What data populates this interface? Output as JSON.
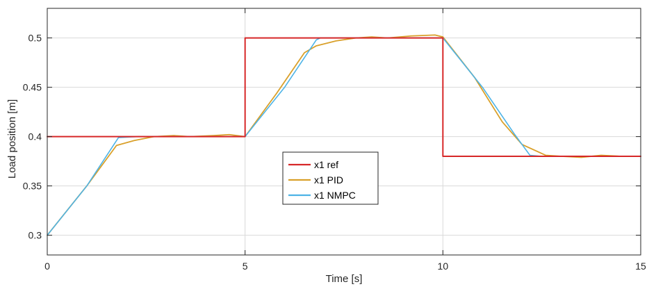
{
  "chart_data": {
    "type": "line",
    "title": "",
    "xlabel": "Time [s]",
    "ylabel": "Load position [m]",
    "xlim": [
      0,
      15
    ],
    "ylim": [
      0.28,
      0.53
    ],
    "xticks": [
      0,
      5,
      10,
      15
    ],
    "yticks": [
      0.3,
      0.35,
      0.4,
      0.45,
      0.5
    ],
    "xtick_labels": [
      "0",
      "5",
      "10",
      "15"
    ],
    "ytick_labels": [
      "0.3",
      "0.35",
      "0.4",
      "0.45",
      "0.5"
    ],
    "grid": true,
    "legend_position": "center",
    "series": [
      {
        "name": "x1 ref",
        "color": "#d62728",
        "x": [
          0,
          5,
          5,
          10,
          10,
          15
        ],
        "y": [
          0.4,
          0.4,
          0.5,
          0.5,
          0.38,
          0.38
        ]
      },
      {
        "name": "x1 PID",
        "color": "#d9a02a",
        "x": [
          0,
          1,
          1.75,
          2.2,
          2.7,
          3.2,
          3.6,
          4.2,
          4.6,
          5,
          5.8,
          6.5,
          6.8,
          7.3,
          7.8,
          8.2,
          8.6,
          9.2,
          9.8,
          10,
          10.8,
          11.5,
          12,
          12.6,
          13,
          13.5,
          14,
          14.5,
          15
        ],
        "y": [
          0.3,
          0.35,
          0.391,
          0.396,
          0.4,
          0.401,
          0.4,
          0.401,
          0.402,
          0.4,
          0.444,
          0.485,
          0.492,
          0.497,
          0.5,
          0.501,
          0.5,
          0.502,
          0.503,
          0.501,
          0.46,
          0.415,
          0.392,
          0.381,
          0.38,
          0.379,
          0.381,
          0.38,
          0.38
        ]
      },
      {
        "name": "x1 NMPC",
        "color": "#4db3e6",
        "x": [
          0,
          1,
          1.8,
          2.3,
          3,
          3.5,
          4,
          5,
          6,
          6.8,
          6.9,
          7.5,
          8,
          9,
          9.8,
          10,
          11,
          11.8,
          12.2,
          12.5,
          13,
          14,
          15
        ],
        "y": [
          0.3,
          0.35,
          0.399,
          0.4,
          0.4,
          0.4,
          0.4,
          0.4,
          0.45,
          0.498,
          0.5,
          0.5,
          0.5,
          0.5,
          0.5,
          0.5,
          0.45,
          0.403,
          0.381,
          0.38,
          0.38,
          0.38,
          0.38
        ]
      }
    ]
  }
}
